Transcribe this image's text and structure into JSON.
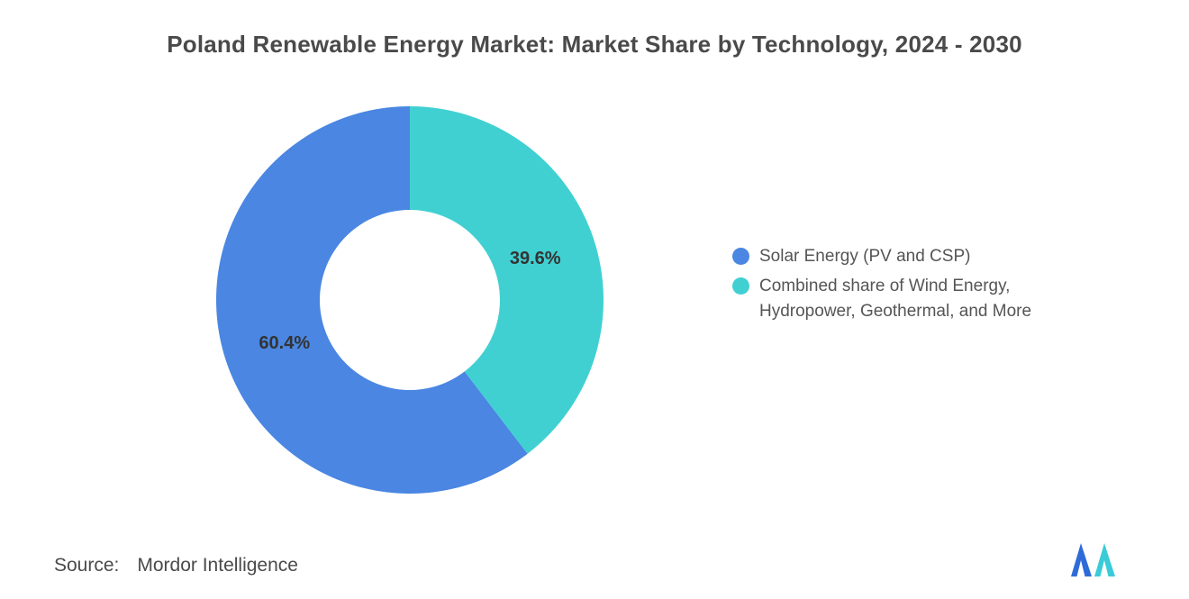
{
  "title": "Poland Renewable Energy Market: Market Share by Technology, 2024 - 2030",
  "source": {
    "label": "Source:",
    "value": "Mordor Intelligence"
  },
  "legend": {
    "items": [
      {
        "label": "Solar Energy (PV and CSP)",
        "color": "#4a86e2"
      },
      {
        "label": "Combined share of Wind Energy, Hydropower, Geothermal, and More",
        "color": "#41d0d2"
      }
    ]
  },
  "logo": {
    "name": "mordor-intelligence-logo",
    "blue": "#2e6bd8",
    "teal": "#3bcbd8"
  },
  "chart_data": {
    "type": "pie",
    "subtype": "donut",
    "title": "Poland Renewable Energy Market: Market Share by Technology, 2024 - 2030",
    "unit": "%",
    "slices": [
      {
        "label": "Solar Energy (PV and CSP)",
        "value": 60.4,
        "value_label": "60.4%",
        "color": "#4a86e2"
      },
      {
        "label": "Combined share of Wind Energy, Hydropower, Geothermal, and More",
        "value": 39.6,
        "value_label": "39.6%",
        "color": "#41d0d2"
      }
    ],
    "layout": {
      "start": "top",
      "direction": "counterclockwise",
      "inner_radius_ratio": 0.465,
      "label_position": "inside",
      "legend_position": "right",
      "grid": false
    }
  }
}
